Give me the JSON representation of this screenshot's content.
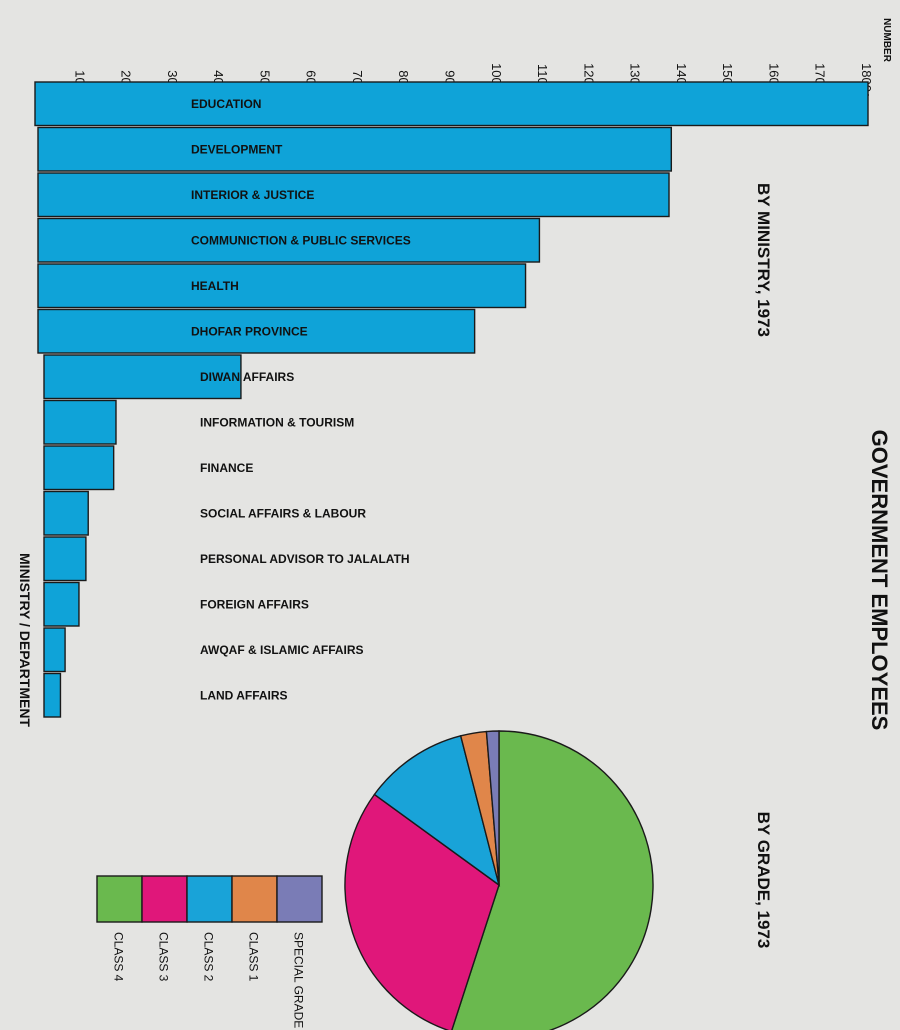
{
  "page": {
    "title": "GOVERNMENT EMPLOYEES"
  },
  "chart_data": [
    {
      "type": "bar",
      "orientation": "horizontal",
      "title": "BY MINISTRY, 1973",
      "xlabel": "NUMBER",
      "ylabel": "MINISTRY / DEPARTMENT",
      "xlim": [
        0,
        1800
      ],
      "ticks": [
        "100",
        "200",
        "300",
        "400",
        "500",
        "600",
        "700",
        "800",
        "900",
        "1000",
        "1100",
        "1200",
        "1300",
        "1400",
        "1500",
        "1600",
        "1700",
        "1800"
      ],
      "categories": [
        "EDUCATION",
        "DEVELOPMENT",
        "INTERIOR & JUSTICE",
        "COMMUNICTION & PUBLIC  SERVICES",
        "HEALTH",
        "DHOFAR  PROVINCE",
        "DIWAN  AFFAIRS",
        "INFORMATION & TOURISM",
        "FINANCE",
        "SOCIAL  AFFAIRS & LABOUR",
        "PERSONAL  ADVISOR  TO  JALALATH",
        "FOREIGN  AFFAIRS",
        "AWQAF & ISLAMIC  AFFAIRS",
        "LAND    AFFAIRS"
      ],
      "values": [
        1800,
        1375,
        1370,
        1090,
        1060,
        950,
        445,
        175,
        170,
        115,
        110,
        95,
        65,
        55
      ],
      "color": "#0fa3d8"
    },
    {
      "type": "pie",
      "title": "BY GRADE, 1973",
      "slices": [
        {
          "name": "CLASS  4",
          "value": 55.0,
          "color": "#6ab94e"
        },
        {
          "name": "CLASS  3",
          "value": 30.0,
          "color": "#e0177a"
        },
        {
          "name": "CLASS  2",
          "value": 11.0,
          "color": "#19a3d8"
        },
        {
          "name": "CLASS  1",
          "value": 2.7,
          "color": "#e0864a"
        },
        {
          "name": "SPECIAL  GRADE",
          "value": 1.3,
          "color": "#7a7cb6"
        }
      ]
    }
  ]
}
